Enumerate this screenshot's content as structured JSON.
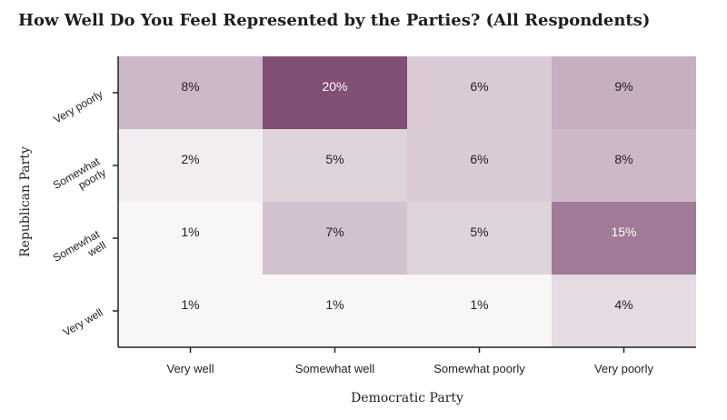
{
  "chart_data": {
    "type": "heatmap",
    "title": "How Well Do You Feel Represented by the Parties? (All Respondents)",
    "xlabel": "Democratic Party",
    "ylabel": "Republican Party",
    "x_categories": [
      "Very well",
      "Somewhat well",
      "Somewhat poorly",
      "Very poorly"
    ],
    "y_categories": [
      "Very poorly",
      "Somewhat poorly",
      "Somewhat well",
      "Very well"
    ],
    "y_tick_lines": [
      [
        "Very poorly"
      ],
      [
        "Somewhat",
        "poorly"
      ],
      [
        "Somewhat",
        "well"
      ],
      [
        "Very well"
      ]
    ],
    "values": [
      [
        8,
        20,
        6,
        9
      ],
      [
        2,
        5,
        6,
        8
      ],
      [
        1,
        7,
        5,
        15
      ],
      [
        1,
        1,
        1,
        4
      ]
    ],
    "labels": [
      [
        "8%",
        "20%",
        "6%",
        "9%"
      ],
      [
        "2%",
        "5%",
        "6%",
        "8%"
      ],
      [
        "1%",
        "7%",
        "5%",
        "15%"
      ],
      [
        "1%",
        "1%",
        "1%",
        "4%"
      ]
    ],
    "color_low": "#f8f6f7",
    "color_high": "#814e74",
    "grid": false,
    "legend": "none"
  }
}
